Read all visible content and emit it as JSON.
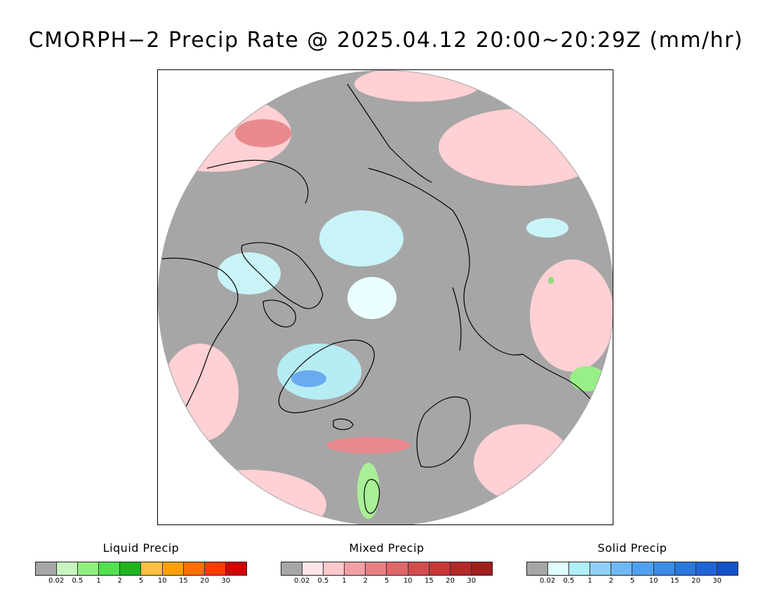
{
  "title": "CMORPH−2 Precip Rate @ 2025.04.12 20:00~20:29Z (mm/hr)",
  "map": {
    "projection": "polar-stereographic-north",
    "background_color": "#a6a6a6",
    "outline_color": "#000000"
  },
  "legends": [
    {
      "title": "Liquid Precip",
      "colors": [
        "#a6a6a6",
        "#c8f5c0",
        "#90ee80",
        "#50e050",
        "#1eb41e",
        "#ffc040",
        "#ffa000",
        "#ff7000",
        "#ff3c00",
        "#d20000"
      ],
      "ticks": [
        "0.02",
        "0.5",
        "1",
        "2",
        "5",
        "10",
        "15",
        "20",
        "30"
      ]
    },
    {
      "title": "Mixed Precip",
      "colors": [
        "#a6a6a6",
        "#ffe4e8",
        "#ffc8cc",
        "#f0a0a4",
        "#e88082",
        "#e06668",
        "#d44c4e",
        "#c83636",
        "#b42828",
        "#a01e1e"
      ],
      "ticks": [
        "0.02",
        "0.5",
        "1",
        "2",
        "5",
        "10",
        "15",
        "20",
        "30"
      ]
    },
    {
      "title": "Solid Precip",
      "colors": [
        "#a6a6a6",
        "#e0ffff",
        "#b0eef8",
        "#90d0f8",
        "#70b8f4",
        "#50a0f0",
        "#3c8ce8",
        "#2a78e0",
        "#2064d8",
        "#1450c8"
      ],
      "ticks": [
        "0.02",
        "0.5",
        "1",
        "2",
        "5",
        "10",
        "15",
        "20",
        "30"
      ]
    }
  ]
}
